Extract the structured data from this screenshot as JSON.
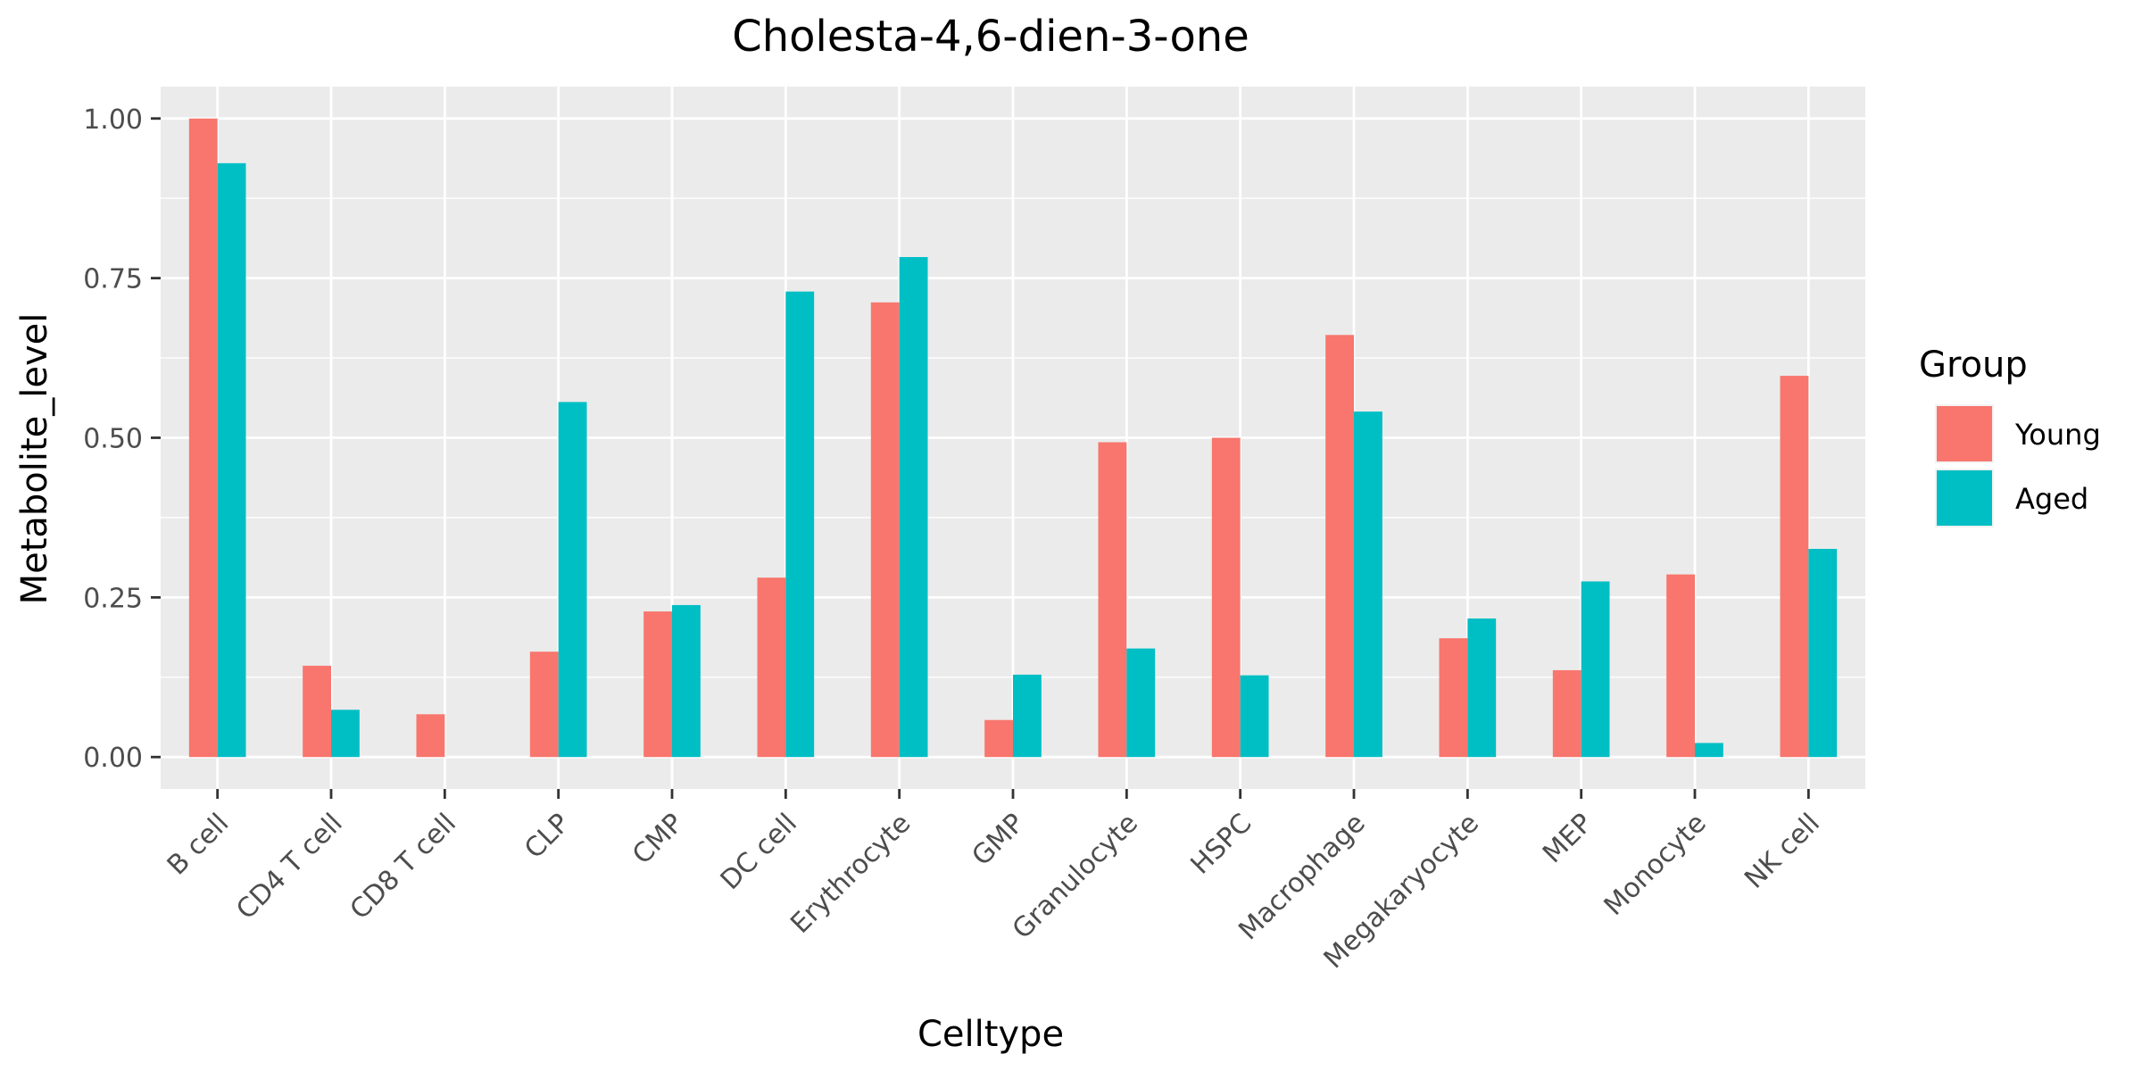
{
  "chart_data": {
    "type": "bar",
    "title": "Cholesta-4,6-dien-3-one",
    "xlabel": "Celltype",
    "ylabel": "Metabolite_level",
    "categories": [
      "B cell",
      "CD4 T cell",
      "CD8 T cell",
      "CLP",
      "CMP",
      "DC cell",
      "Erythrocyte",
      "GMP",
      "Granulocyte",
      "HSPC",
      "Macrophage",
      "Megakaryocyte",
      "MEP",
      "Monocyte",
      "NK cell"
    ],
    "series": [
      {
        "name": "Young",
        "color": "#F8766D",
        "values": [
          1.0,
          0.143,
          0.067,
          0.165,
          0.228,
          0.281,
          0.712,
          0.058,
          0.493,
          0.5,
          0.661,
          0.186,
          0.136,
          0.286,
          0.597
        ]
      },
      {
        "name": "Aged",
        "color": "#00BFC4",
        "values": [
          0.93,
          0.074,
          0.0,
          0.556,
          0.238,
          0.729,
          0.783,
          0.129,
          0.17,
          0.128,
          0.541,
          0.217,
          0.275,
          0.022,
          0.326
        ]
      }
    ],
    "ylim": [
      -0.05,
      1.05
    ],
    "yticks": [
      0.0,
      0.25,
      0.5,
      0.75,
      1.0
    ],
    "ytick_labels": [
      "0.00",
      "0.25",
      "0.50",
      "0.75",
      "1.00"
    ],
    "grid": true,
    "legend": {
      "title": "Group",
      "position": "right"
    },
    "panel_background": "#EBEBEB",
    "grid_color": "#FFFFFF"
  }
}
